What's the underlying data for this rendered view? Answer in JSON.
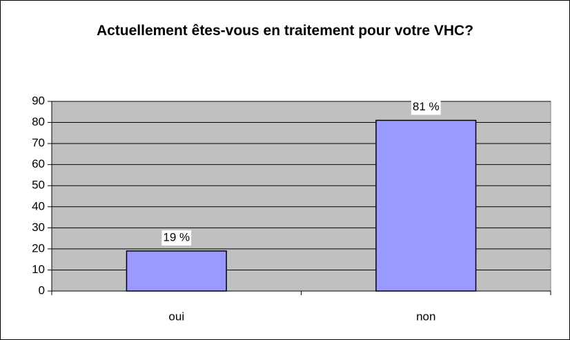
{
  "chart_data": {
    "type": "bar",
    "title": "Actuellement êtes-vous en traitement pour votre VHC?",
    "categories": [
      "oui",
      "non"
    ],
    "values": [
      19,
      81
    ],
    "value_labels": [
      "19 %",
      "81 %"
    ],
    "color": "#9999ff",
    "ylim": [
      0,
      90
    ],
    "yticks": [
      0,
      10,
      20,
      30,
      40,
      50,
      60,
      70,
      80,
      90
    ],
    "grid": true
  }
}
